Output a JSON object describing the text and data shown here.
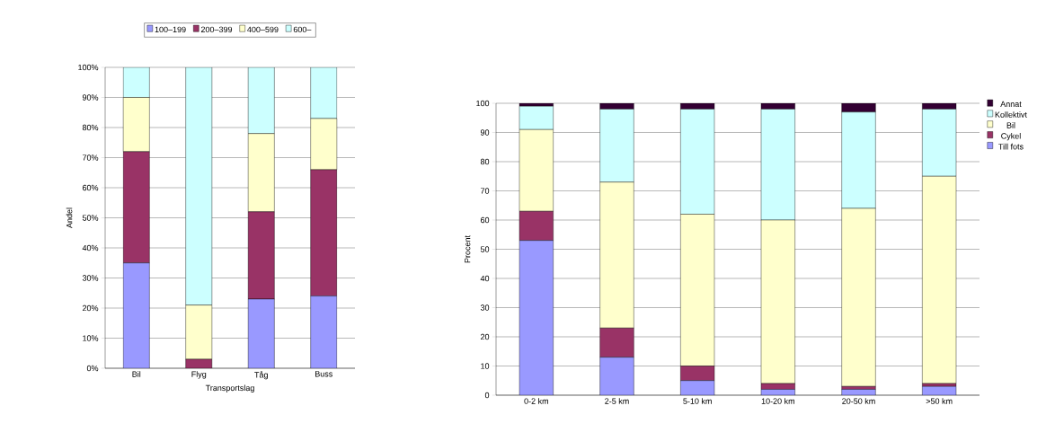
{
  "chart_data": [
    {
      "type": "bar",
      "stacked": true,
      "xlabel": "Transportslag",
      "ylabel": "Andel",
      "categories": [
        "Bil",
        "Flyg",
        "Tåg",
        "Buss"
      ],
      "series": [
        {
          "name": "100–199",
          "color": "#9999ff",
          "values": [
            35,
            0,
            23,
            24
          ]
        },
        {
          "name": "200–399",
          "color": "#993366",
          "values": [
            37,
            3,
            29,
            42
          ]
        },
        {
          "name": "400–599",
          "color": "#ffffcc",
          "values": [
            18,
            18,
            26,
            17
          ]
        },
        {
          "name": "600–",
          "color": "#ccffff",
          "values": [
            10,
            79,
            22,
            17
          ]
        }
      ],
      "ylim": [
        0,
        100
      ],
      "yticks": [
        {
          "value": 0,
          "label": "0%"
        },
        {
          "value": 10,
          "label": "10%"
        },
        {
          "value": 20,
          "label": "20%"
        },
        {
          "value": 30,
          "label": "30%"
        },
        {
          "value": 40,
          "label": "40%"
        },
        {
          "value": 50,
          "label": "50%"
        },
        {
          "value": 60,
          "label": "60%"
        },
        {
          "value": 70,
          "label": "70%"
        },
        {
          "value": 80,
          "label": "80%"
        },
        {
          "value": 90,
          "label": "90%"
        },
        {
          "value": 100,
          "label": "100%"
        }
      ],
      "grid": "y",
      "legend": "top"
    },
    {
      "type": "bar",
      "stacked": true,
      "ylabel": "Procent",
      "categories": [
        "0-2 km",
        "2-5 km",
        "5-10 km",
        "10-20 km",
        "20-50 km",
        ">50 km"
      ],
      "series": [
        {
          "name": "Till fots",
          "color": "#9999ff",
          "values": [
            53,
            13,
            5,
            2,
            2,
            3
          ]
        },
        {
          "name": "Cykel",
          "color": "#993366",
          "values": [
            10,
            10,
            5,
            2,
            1,
            1
          ]
        },
        {
          "name": "Bil",
          "color": "#ffffcc",
          "values": [
            28,
            50,
            52,
            56,
            61,
            71
          ]
        },
        {
          "name": "Kollektivt",
          "color": "#ccffff",
          "values": [
            8,
            25,
            36,
            38,
            33,
            23
          ]
        },
        {
          "name": "Annat",
          "color": "#330033",
          "values": [
            1,
            2,
            2,
            2,
            3,
            2
          ]
        }
      ],
      "ylim": [
        0,
        100
      ],
      "yticks": [
        0,
        10,
        20,
        30,
        40,
        50,
        60,
        70,
        80,
        90,
        100
      ],
      "grid": "y",
      "legend": "right"
    }
  ]
}
